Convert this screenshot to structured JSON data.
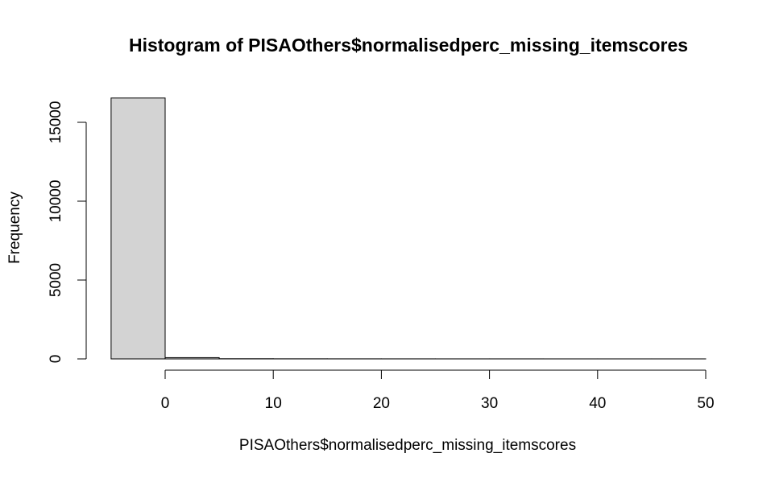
{
  "chart_data": {
    "type": "bar",
    "title": "Histogram of PISAOthers$normalisedperc_missing_itemscores",
    "xlabel": "PISAOthers$normalisedperc_missing_itemscores",
    "ylabel": "Frequency",
    "bar_fill": "#d3d3d3",
    "bins": [
      {
        "x0": -5,
        "x1": 0,
        "count": 16540
      },
      {
        "x0": 0,
        "x1": 5,
        "count": 80
      },
      {
        "x0": 5,
        "x1": 10,
        "count": 10
      },
      {
        "x0": 10,
        "x1": 15,
        "count": 6
      },
      {
        "x0": 15,
        "x1": 20,
        "count": 4
      },
      {
        "x0": 20,
        "x1": 25,
        "count": 3
      },
      {
        "x0": 25,
        "x1": 30,
        "count": 2
      },
      {
        "x0": 30,
        "x1": 35,
        "count": 2
      },
      {
        "x0": 35,
        "x1": 40,
        "count": 1
      },
      {
        "x0": 40,
        "x1": 45,
        "count": 1
      },
      {
        "x0": 45,
        "x1": 50,
        "count": 1
      }
    ],
    "x_ticks": [
      0,
      10,
      20,
      30,
      40,
      50
    ],
    "x_tick_labels": [
      "0",
      "10",
      "20",
      "30",
      "40",
      "50"
    ],
    "y_ticks": [
      0,
      5000,
      10000,
      15000
    ],
    "y_tick_labels": [
      "0",
      "5000",
      "10000",
      "15000"
    ],
    "xlim": [
      -5,
      50
    ],
    "ylim": [
      0,
      16540
    ]
  }
}
